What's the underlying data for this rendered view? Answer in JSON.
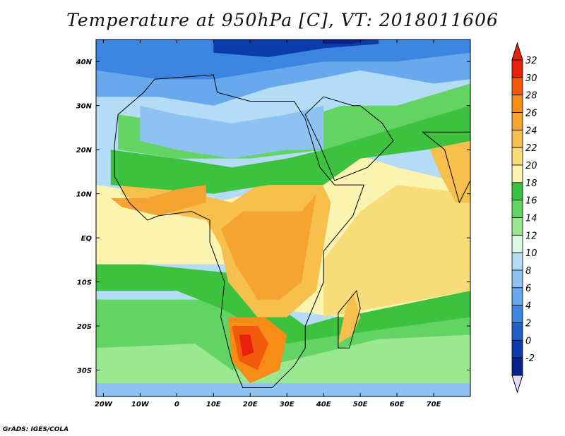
{
  "title": "Temperature at 950hPa [C], VT: 2018011606",
  "footer": "GrADS: IGES/COLA",
  "map": {
    "lon_range": [
      -22,
      80
    ],
    "lat_range": [
      -36,
      45
    ],
    "x_ticks": [
      {
        "lon": -20,
        "label": "20W"
      },
      {
        "lon": -10,
        "label": "10W"
      },
      {
        "lon": 0,
        "label": "0"
      },
      {
        "lon": 10,
        "label": "10E"
      },
      {
        "lon": 20,
        "label": "20E"
      },
      {
        "lon": 30,
        "label": "30E"
      },
      {
        "lon": 40,
        "label": "40E"
      },
      {
        "lon": 50,
        "label": "50E"
      },
      {
        "lon": 60,
        "label": "60E"
      },
      {
        "lon": 70,
        "label": "70E"
      }
    ],
    "y_ticks": [
      {
        "lat": 40,
        "label": "40N"
      },
      {
        "lat": 30,
        "label": "30N"
      },
      {
        "lat": 20,
        "label": "20N"
      },
      {
        "lat": 10,
        "label": "10N"
      },
      {
        "lat": 0,
        "label": "EQ"
      },
      {
        "lat": -10,
        "label": "10S"
      },
      {
        "lat": -20,
        "label": "20S"
      },
      {
        "lat": -30,
        "label": "30S"
      }
    ]
  },
  "colorbar": {
    "levels": [
      "32",
      "30",
      "28",
      "26",
      "24",
      "22",
      "20",
      "18",
      "16",
      "14",
      "12",
      "10",
      "8",
      "6",
      "4",
      "2",
      "0",
      "-2"
    ],
    "colors": [
      "#e8200c",
      "#f25a0e",
      "#f78c16",
      "#f5a331",
      "#f7c04d",
      "#f7dd7a",
      "#fbf3b0",
      "#3cc23f",
      "#63d463",
      "#9ae890",
      "#dcf8e4",
      "#b4dcf7",
      "#8ec2f2",
      "#68a8ec",
      "#3c85e0",
      "#2060c8",
      "#0c3caa",
      "#08228a"
    ],
    "top_arrow_color": "#e8200c",
    "bottom_arrow_color": "#e0dcfa"
  },
  "colors": {
    "ocean_cold": "#b4dcf7",
    "land_outline": "#000000"
  }
}
